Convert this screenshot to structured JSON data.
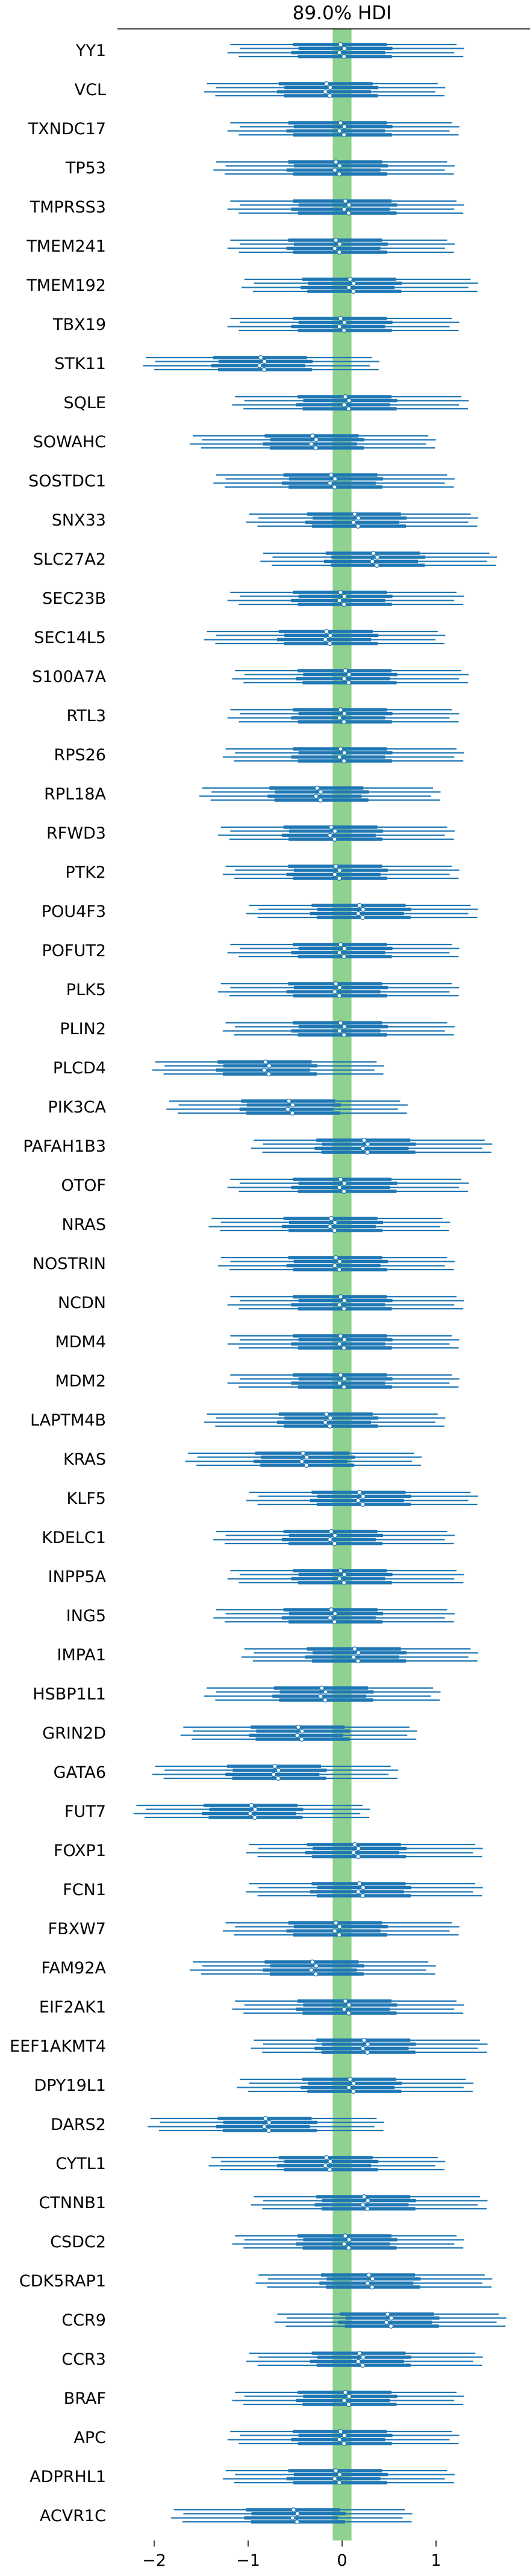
{
  "chart_data": {
    "type": "forest",
    "title": "89.0% HDI",
    "xlabel": "",
    "ylabel": "",
    "xlim": [
      -2.35,
      1.95
    ],
    "xticks": [
      -2,
      -1,
      0,
      1
    ],
    "xtick_labels": [
      "−2",
      "−1",
      "0",
      "1"
    ],
    "reference_band": [
      -0.1,
      0.1
    ],
    "colors": {
      "interval": "#1f77b4",
      "band": "#8fd18f",
      "point_fill": "#ffffff"
    },
    "genes": [
      {
        "name": "YY1",
        "median": 0.0,
        "hdi89_low": -1.15,
        "hdi89_high": 1.25,
        "iqr_low": -0.5,
        "iqr_high": 0.5
      },
      {
        "name": "VCL",
        "median": -0.15,
        "hdi89_low": -1.4,
        "hdi89_high": 1.05,
        "iqr_low": -0.65,
        "iqr_high": 0.35
      },
      {
        "name": "TXNDC17",
        "median": 0.0,
        "hdi89_low": -1.15,
        "hdi89_high": 1.2,
        "iqr_low": -0.55,
        "iqr_high": 0.5
      },
      {
        "name": "TP53",
        "median": -0.05,
        "hdi89_low": -1.3,
        "hdi89_high": 1.15,
        "iqr_low": -0.55,
        "iqr_high": 0.45
      },
      {
        "name": "TMPRSS3",
        "median": 0.05,
        "hdi89_low": -1.15,
        "hdi89_high": 1.25,
        "iqr_low": -0.5,
        "iqr_high": 0.55
      },
      {
        "name": "TMEM241",
        "median": -0.05,
        "hdi89_low": -1.15,
        "hdi89_high": 1.15,
        "iqr_low": -0.55,
        "iqr_high": 0.45
      },
      {
        "name": "TMEM192",
        "median": 0.1,
        "hdi89_low": -1.0,
        "hdi89_high": 1.4,
        "iqr_low": -0.4,
        "iqr_high": 0.6
      },
      {
        "name": "TBX19",
        "median": 0.0,
        "hdi89_low": -1.15,
        "hdi89_high": 1.2,
        "iqr_low": -0.5,
        "iqr_high": 0.5
      },
      {
        "name": "STK11",
        "median": -0.85,
        "hdi89_low": -2.05,
        "hdi89_high": 0.35,
        "iqr_low": -1.35,
        "iqr_high": -0.35
      },
      {
        "name": "SQLE",
        "median": 0.05,
        "hdi89_low": -1.1,
        "hdi89_high": 1.3,
        "iqr_low": -0.45,
        "iqr_high": 0.55
      },
      {
        "name": "SOWAHC",
        "median": -0.3,
        "hdi89_low": -1.55,
        "hdi89_high": 0.95,
        "iqr_low": -0.8,
        "iqr_high": 0.2
      },
      {
        "name": "SOSTDC1",
        "median": -0.1,
        "hdi89_low": -1.3,
        "hdi89_high": 1.15,
        "iqr_low": -0.6,
        "iqr_high": 0.4
      },
      {
        "name": "SNX33",
        "median": 0.15,
        "hdi89_low": -0.95,
        "hdi89_high": 1.4,
        "iqr_low": -0.35,
        "iqr_high": 0.65
      },
      {
        "name": "SLC27A2",
        "median": 0.35,
        "hdi89_low": -0.8,
        "hdi89_high": 1.6,
        "iqr_low": -0.15,
        "iqr_high": 0.85
      },
      {
        "name": "SEC23B",
        "median": 0.0,
        "hdi89_low": -1.15,
        "hdi89_high": 1.25,
        "iqr_low": -0.5,
        "iqr_high": 0.5
      },
      {
        "name": "SEC14L5",
        "median": -0.15,
        "hdi89_low": -1.4,
        "hdi89_high": 1.05,
        "iqr_low": -0.65,
        "iqr_high": 0.35
      },
      {
        "name": "S100A7A",
        "median": 0.05,
        "hdi89_low": -1.1,
        "hdi89_high": 1.3,
        "iqr_low": -0.45,
        "iqr_high": 0.55
      },
      {
        "name": "RTL3",
        "median": 0.0,
        "hdi89_low": -1.15,
        "hdi89_high": 1.2,
        "iqr_low": -0.5,
        "iqr_high": 0.5
      },
      {
        "name": "RPS26",
        "median": 0.0,
        "hdi89_low": -1.2,
        "hdi89_high": 1.25,
        "iqr_low": -0.5,
        "iqr_high": 0.5
      },
      {
        "name": "RPL18A",
        "median": -0.25,
        "hdi89_low": -1.45,
        "hdi89_high": 1.0,
        "iqr_low": -0.75,
        "iqr_high": 0.25
      },
      {
        "name": "RFWD3",
        "median": -0.1,
        "hdi89_low": -1.25,
        "hdi89_high": 1.15,
        "iqr_low": -0.6,
        "iqr_high": 0.4
      },
      {
        "name": "PTK2",
        "median": -0.05,
        "hdi89_low": -1.2,
        "hdi89_high": 1.2,
        "iqr_low": -0.55,
        "iqr_high": 0.45
      },
      {
        "name": "POU4F3",
        "median": 0.2,
        "hdi89_low": -0.95,
        "hdi89_high": 1.4,
        "iqr_low": -0.3,
        "iqr_high": 0.7
      },
      {
        "name": "POFUT2",
        "median": 0.0,
        "hdi89_low": -1.15,
        "hdi89_high": 1.2,
        "iqr_low": -0.5,
        "iqr_high": 0.5
      },
      {
        "name": "PLK5",
        "median": -0.05,
        "hdi89_low": -1.25,
        "hdi89_high": 1.2,
        "iqr_low": -0.55,
        "iqr_high": 0.45
      },
      {
        "name": "PLIN2",
        "median": 0.0,
        "hdi89_low": -1.2,
        "hdi89_high": 1.15,
        "iqr_low": -0.5,
        "iqr_high": 0.45
      },
      {
        "name": "PLCD4",
        "median": -0.8,
        "hdi89_low": -1.95,
        "hdi89_high": 0.4,
        "iqr_low": -1.3,
        "iqr_high": -0.3
      },
      {
        "name": "PIK3CA",
        "median": -0.55,
        "hdi89_low": -1.8,
        "hdi89_high": 0.65,
        "iqr_low": -1.05,
        "iqr_high": -0.05
      },
      {
        "name": "PAFAH1B3",
        "median": 0.25,
        "hdi89_low": -0.9,
        "hdi89_high": 1.55,
        "iqr_low": -0.25,
        "iqr_high": 0.75
      },
      {
        "name": "OTOF",
        "median": 0.0,
        "hdi89_low": -1.15,
        "hdi89_high": 1.3,
        "iqr_low": -0.5,
        "iqr_high": 0.55
      },
      {
        "name": "NRAS",
        "median": -0.1,
        "hdi89_low": -1.35,
        "hdi89_high": 1.1,
        "iqr_low": -0.6,
        "iqr_high": 0.4
      },
      {
        "name": "NOSTRIN",
        "median": -0.05,
        "hdi89_low": -1.25,
        "hdi89_high": 1.15,
        "iqr_low": -0.55,
        "iqr_high": 0.45
      },
      {
        "name": "NCDN",
        "median": 0.0,
        "hdi89_low": -1.15,
        "hdi89_high": 1.25,
        "iqr_low": -0.5,
        "iqr_high": 0.5
      },
      {
        "name": "MDM4",
        "median": 0.0,
        "hdi89_low": -1.15,
        "hdi89_high": 1.2,
        "iqr_low": -0.5,
        "iqr_high": 0.5
      },
      {
        "name": "MDM2",
        "median": 0.0,
        "hdi89_low": -1.15,
        "hdi89_high": 1.2,
        "iqr_low": -0.5,
        "iqr_high": 0.5
      },
      {
        "name": "LAPTM4B",
        "median": -0.15,
        "hdi89_low": -1.4,
        "hdi89_high": 1.05,
        "iqr_low": -0.65,
        "iqr_high": 0.35
      },
      {
        "name": "KRAS",
        "median": -0.4,
        "hdi89_low": -1.6,
        "hdi89_high": 0.8,
        "iqr_low": -0.9,
        "iqr_high": 0.1
      },
      {
        "name": "KLF5",
        "median": 0.2,
        "hdi89_low": -0.95,
        "hdi89_high": 1.4,
        "iqr_low": -0.3,
        "iqr_high": 0.7
      },
      {
        "name": "KDELC1",
        "median": -0.1,
        "hdi89_low": -1.3,
        "hdi89_high": 1.15,
        "iqr_low": -0.6,
        "iqr_high": 0.4
      },
      {
        "name": "INPP5A",
        "median": 0.0,
        "hdi89_low": -1.15,
        "hdi89_high": 1.25,
        "iqr_low": -0.5,
        "iqr_high": 0.5
      },
      {
        "name": "ING5",
        "median": -0.1,
        "hdi89_low": -1.3,
        "hdi89_high": 1.15,
        "iqr_low": -0.6,
        "iqr_high": 0.4
      },
      {
        "name": "IMPA1",
        "median": 0.15,
        "hdi89_low": -1.0,
        "hdi89_high": 1.4,
        "iqr_low": -0.35,
        "iqr_high": 0.65
      },
      {
        "name": "HSBP1L1",
        "median": -0.2,
        "hdi89_low": -1.4,
        "hdi89_high": 1.0,
        "iqr_low": -0.7,
        "iqr_high": 0.3
      },
      {
        "name": "GRIN2D",
        "median": -0.45,
        "hdi89_low": -1.65,
        "hdi89_high": 0.75,
        "iqr_low": -0.95,
        "iqr_high": 0.05
      },
      {
        "name": "GATA6",
        "median": -0.7,
        "hdi89_low": -1.95,
        "hdi89_high": 0.55,
        "iqr_low": -1.2,
        "iqr_high": -0.2
      },
      {
        "name": "FUT7",
        "median": -0.95,
        "hdi89_low": -2.15,
        "hdi89_high": 0.25,
        "iqr_low": -1.45,
        "iqr_high": -0.45
      },
      {
        "name": "FOXP1",
        "median": 0.15,
        "hdi89_low": -0.95,
        "hdi89_high": 1.45,
        "iqr_low": -0.35,
        "iqr_high": 0.65
      },
      {
        "name": "FCN1",
        "median": 0.2,
        "hdi89_low": -0.95,
        "hdi89_high": 1.45,
        "iqr_low": -0.3,
        "iqr_high": 0.7
      },
      {
        "name": "FBXW7",
        "median": -0.05,
        "hdi89_low": -1.2,
        "hdi89_high": 1.2,
        "iqr_low": -0.55,
        "iqr_high": 0.45
      },
      {
        "name": "FAM92A",
        "median": -0.3,
        "hdi89_low": -1.55,
        "hdi89_high": 0.95,
        "iqr_low": -0.8,
        "iqr_high": 0.2
      },
      {
        "name": "EIF2AK1",
        "median": 0.05,
        "hdi89_low": -1.1,
        "hdi89_high": 1.25,
        "iqr_low": -0.45,
        "iqr_high": 0.55
      },
      {
        "name": "EEF1AKMT4",
        "median": 0.25,
        "hdi89_low": -0.9,
        "hdi89_high": 1.5,
        "iqr_low": -0.25,
        "iqr_high": 0.75
      },
      {
        "name": "DPY19L1",
        "median": 0.1,
        "hdi89_low": -1.05,
        "hdi89_high": 1.35,
        "iqr_low": -0.4,
        "iqr_high": 0.6
      },
      {
        "name": "DARS2",
        "median": -0.8,
        "hdi89_low": -2.0,
        "hdi89_high": 0.4,
        "iqr_low": -1.3,
        "iqr_high": -0.3
      },
      {
        "name": "CYTL1",
        "median": -0.15,
        "hdi89_low": -1.35,
        "hdi89_high": 1.05,
        "iqr_low": -0.65,
        "iqr_high": 0.35
      },
      {
        "name": "CTNNB1",
        "median": 0.25,
        "hdi89_low": -0.9,
        "hdi89_high": 1.5,
        "iqr_low": -0.25,
        "iqr_high": 0.75
      },
      {
        "name": "CSDC2",
        "median": 0.05,
        "hdi89_low": -1.1,
        "hdi89_high": 1.25,
        "iqr_low": -0.45,
        "iqr_high": 0.55
      },
      {
        "name": "CDK5RAP1",
        "median": 0.3,
        "hdi89_low": -0.85,
        "hdi89_high": 1.55,
        "iqr_low": -0.2,
        "iqr_high": 0.8
      },
      {
        "name": "CCR9",
        "median": 0.5,
        "hdi89_low": -0.65,
        "hdi89_high": 1.7,
        "iqr_low": 0.0,
        "iqr_high": 1.0
      },
      {
        "name": "CCR3",
        "median": 0.2,
        "hdi89_low": -0.95,
        "hdi89_high": 1.45,
        "iqr_low": -0.3,
        "iqr_high": 0.7
      },
      {
        "name": "BRAF",
        "median": 0.05,
        "hdi89_low": -1.1,
        "hdi89_high": 1.25,
        "iqr_low": -0.45,
        "iqr_high": 0.55
      },
      {
        "name": "APC",
        "median": 0.0,
        "hdi89_low": -1.15,
        "hdi89_high": 1.2,
        "iqr_low": -0.5,
        "iqr_high": 0.5
      },
      {
        "name": "ADPRHL1",
        "median": -0.05,
        "hdi89_low": -1.2,
        "hdi89_high": 1.15,
        "iqr_low": -0.55,
        "iqr_high": 0.45
      },
      {
        "name": "ACVR1C",
        "median": -0.5,
        "hdi89_low": -1.75,
        "hdi89_high": 0.7,
        "iqr_low": -1.0,
        "iqr_high": 0.0
      }
    ]
  }
}
